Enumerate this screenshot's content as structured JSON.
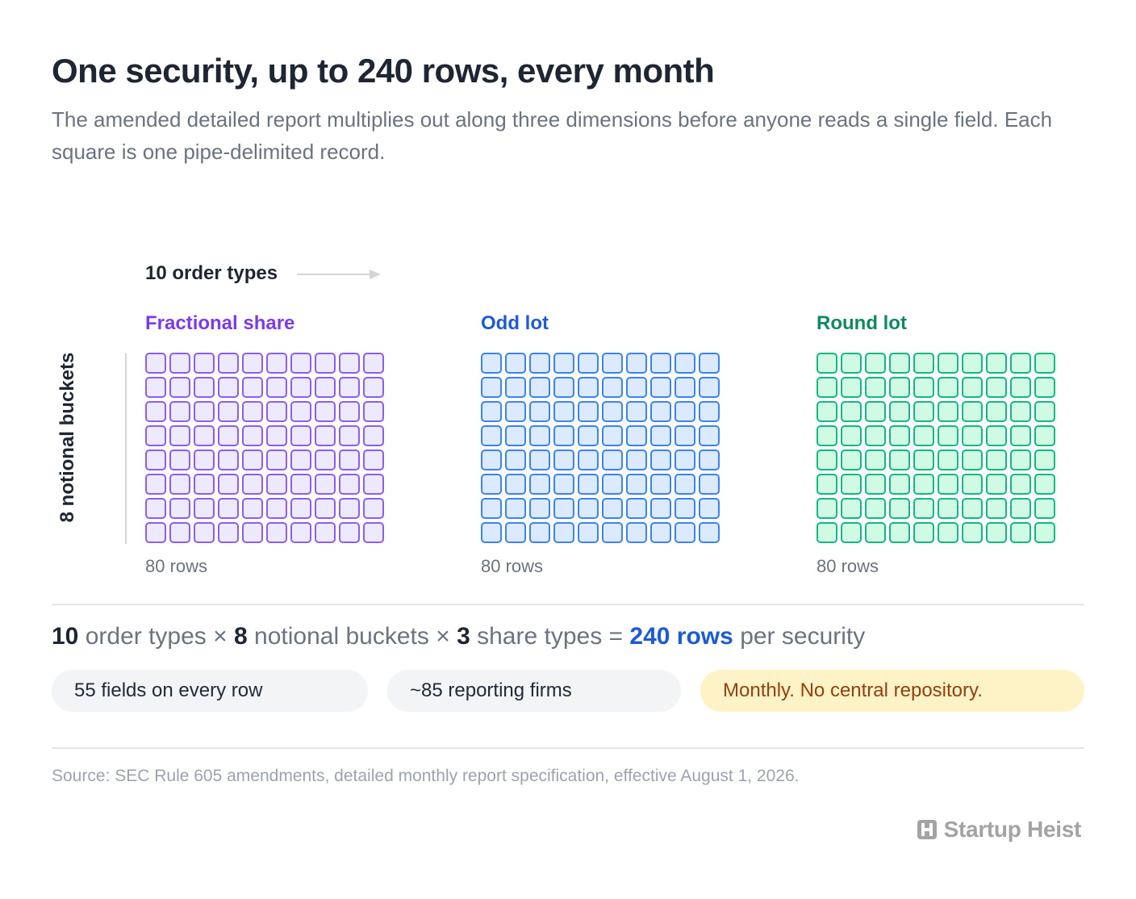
{
  "title": "One security, up to 240 rows, every month",
  "subtitle": "The amended detailed report multiplies out along three dimensions before anyone reads a single field. Each square is one pipe-delimited record.",
  "axis_x_label": "10 order types",
  "axis_y_label": "8 notional buckets",
  "grid_shape": {
    "columns": 10,
    "rows": 8
  },
  "panels": [
    {
      "title": "Fractional share",
      "rows_label": "80 rows",
      "color": "#7c3aed",
      "fill": "#ede9fe",
      "stroke": "#8b5cf6"
    },
    {
      "title": "Odd lot",
      "rows_label": "80 rows",
      "color": "#1d5ad8",
      "fill": "#dbeafe",
      "stroke": "#3b82f6"
    },
    {
      "title": "Round lot",
      "rows_label": "80 rows",
      "color": "#0f8a5f",
      "fill": "#d1fae5",
      "stroke": "#10b981"
    }
  ],
  "formula": {
    "n1": "10",
    "t1": "order types",
    "op1": "×",
    "n2": "8",
    "t2": "notional buckets",
    "op2": "×",
    "n3": "3",
    "t3": "share types",
    "eq": "=",
    "result": "240 rows",
    "tail": "per security",
    "result_color": "#1d5ad8"
  },
  "pills": [
    {
      "text": "55 fields on every row",
      "bg": "#f3f4f6",
      "color": "#1f2937"
    },
    {
      "text": "~85 reporting firms",
      "bg": "#f3f4f6",
      "color": "#1f2937"
    },
    {
      "text": "Monthly. No central repository.",
      "bg": "#fef3c7",
      "color": "#92400e"
    }
  ],
  "source": "Source: SEC Rule 605 amendments, detailed monthly report specification, effective August 1, 2026.",
  "brand": {
    "name": "Startup Heist",
    "icon": "startup-heist-logo-icon"
  }
}
